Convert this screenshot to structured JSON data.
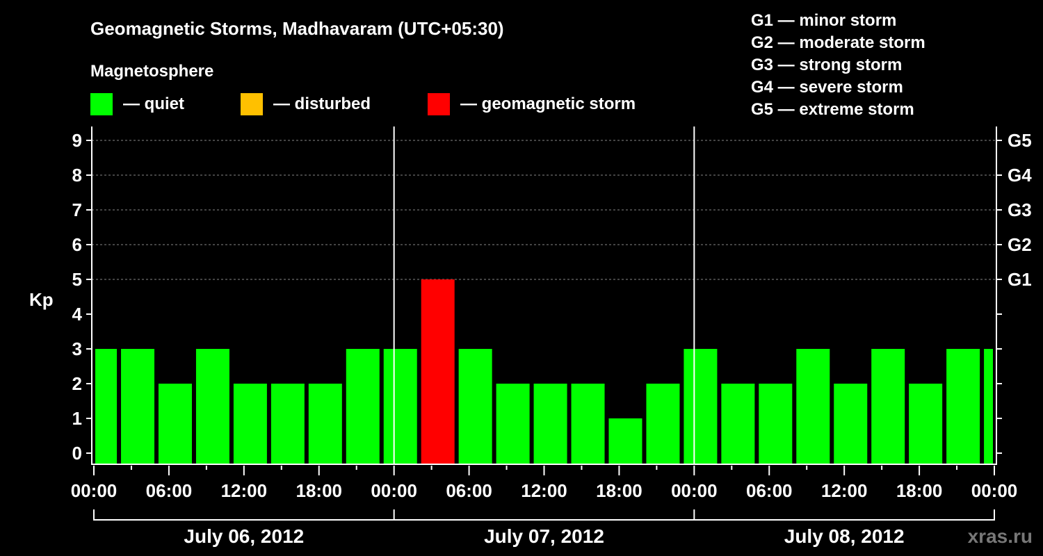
{
  "chart_data": {
    "type": "bar",
    "title": "Geomagnetic Storms, Madhavaram (UTC+05:30)",
    "legend_title": "Magnetosphere",
    "legend": [
      {
        "label": "— quiet",
        "color": "#00ff00"
      },
      {
        "label": "— disturbed",
        "color": "#ffc000"
      },
      {
        "label": "— geomagnetic storm",
        "color": "#ff0000"
      }
    ],
    "storm_scale": [
      "G1 — minor storm",
      "G2 — moderate storm",
      "G3 — strong storm",
      "G4 — severe storm",
      "G5 — extreme storm"
    ],
    "ylabel": "Kp",
    "ylim": [
      0,
      9
    ],
    "yticks": [
      "0",
      "1",
      "2",
      "3",
      "4",
      "5",
      "6",
      "7",
      "8",
      "9"
    ],
    "right_ticks": [
      {
        "kp": 5,
        "label": "G1"
      },
      {
        "kp": 6,
        "label": "G2"
      },
      {
        "kp": 7,
        "label": "G3"
      },
      {
        "kp": 8,
        "label": "G4"
      },
      {
        "kp": 9,
        "label": "G5"
      }
    ],
    "xticks": [
      "00:00",
      "06:00",
      "12:00",
      "18:00",
      "00:00",
      "06:00",
      "12:00",
      "18:00",
      "00:00",
      "06:00",
      "12:00",
      "18:00",
      "00:00"
    ],
    "days": [
      "July 06, 2012",
      "July 07, 2012",
      "July 08, 2012"
    ],
    "interval_hours": 3,
    "first_bar_offset_hours": -0.83,
    "values": [
      3,
      3,
      2,
      3,
      2,
      2,
      2,
      3,
      3,
      5,
      3,
      2,
      2,
      2,
      1,
      2,
      3,
      2,
      2,
      3,
      2,
      3,
      2,
      3,
      3
    ],
    "colors": {
      "quiet": "#00ff00",
      "disturbed": "#ffc000",
      "storm": "#ff0000"
    },
    "grid": "dashed at 5-9"
  },
  "watermark": "xras.ru"
}
